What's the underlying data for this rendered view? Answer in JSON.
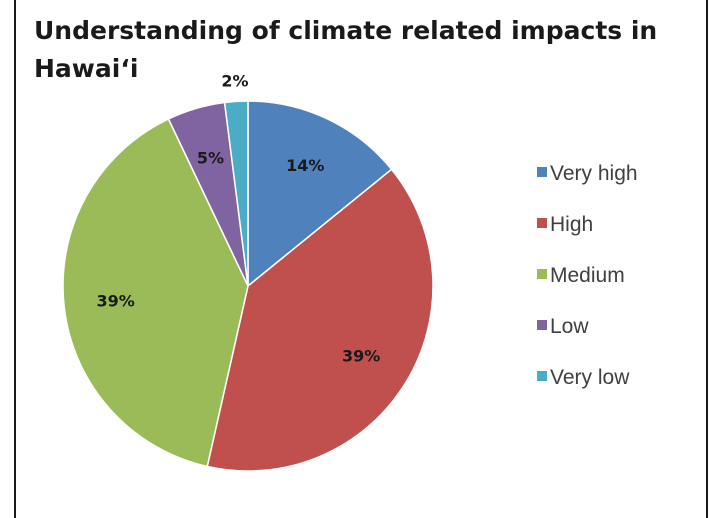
{
  "chart_data": {
    "type": "pie",
    "title": "Understanding of climate related impacts in Hawai‘i",
    "categories": [
      "Very high",
      "High",
      "Medium",
      "Low",
      "Very low"
    ],
    "values": [
      14,
      39,
      39,
      5,
      2
    ],
    "labels": [
      "14%",
      "39%",
      "39%",
      "5%",
      "2%"
    ],
    "colors": [
      "#4f81bd",
      "#c0504d",
      "#9bbb59",
      "#8064a2",
      "#4bacc6"
    ],
    "legend_position": "right",
    "start_angle": "12 o'clock, clockwise"
  }
}
